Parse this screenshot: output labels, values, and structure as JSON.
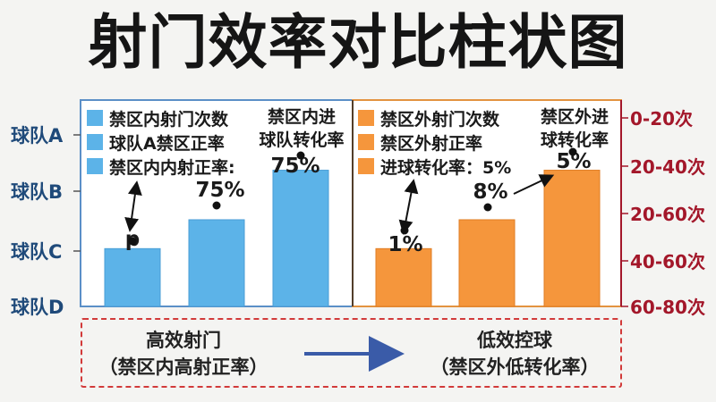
{
  "title": "射门效率对比柱状图",
  "chart_data": {
    "type": "bar",
    "title": "射门效率对比柱状图",
    "y_left_ticks": [
      "球队A",
      "球队B",
      "球队C",
      "球队D"
    ],
    "y_right_ticks": [
      "0-20次",
      "20-40次",
      "20-60次",
      "40-60次",
      "60-80次"
    ],
    "panels": [
      {
        "name": "inside",
        "color": "#5cb3e8",
        "legend": [
          "禁区内射门次数",
          "球队A禁区正率",
          "禁区内内射正率:"
        ],
        "top_label": [
          "禁区内进",
          "球队转化率"
        ],
        "values": [
          0.28,
          0.42,
          0.66
        ],
        "labels": [
          "p",
          "75%",
          "75%"
        ]
      },
      {
        "name": "outside",
        "color": "#f5963c",
        "legend": [
          "禁区外射门次数",
          "禁区外射正率",
          "进球转化率：5%"
        ],
        "top_label": [
          "禁区外进",
          "球转化率"
        ],
        "values": [
          0.28,
          0.42,
          0.66
        ],
        "labels": [
          "1%",
          "8%",
          "5%"
        ]
      }
    ]
  },
  "flow": {
    "left": [
      "高效射门",
      "（禁区内高射正率）"
    ],
    "right": [
      "低效控球",
      "（禁区外低转化率）"
    ]
  },
  "colors": {
    "accent_red": "#a3172a",
    "axis_blue": "#1f4a7a",
    "arrow_blue": "#3a5ba8"
  }
}
